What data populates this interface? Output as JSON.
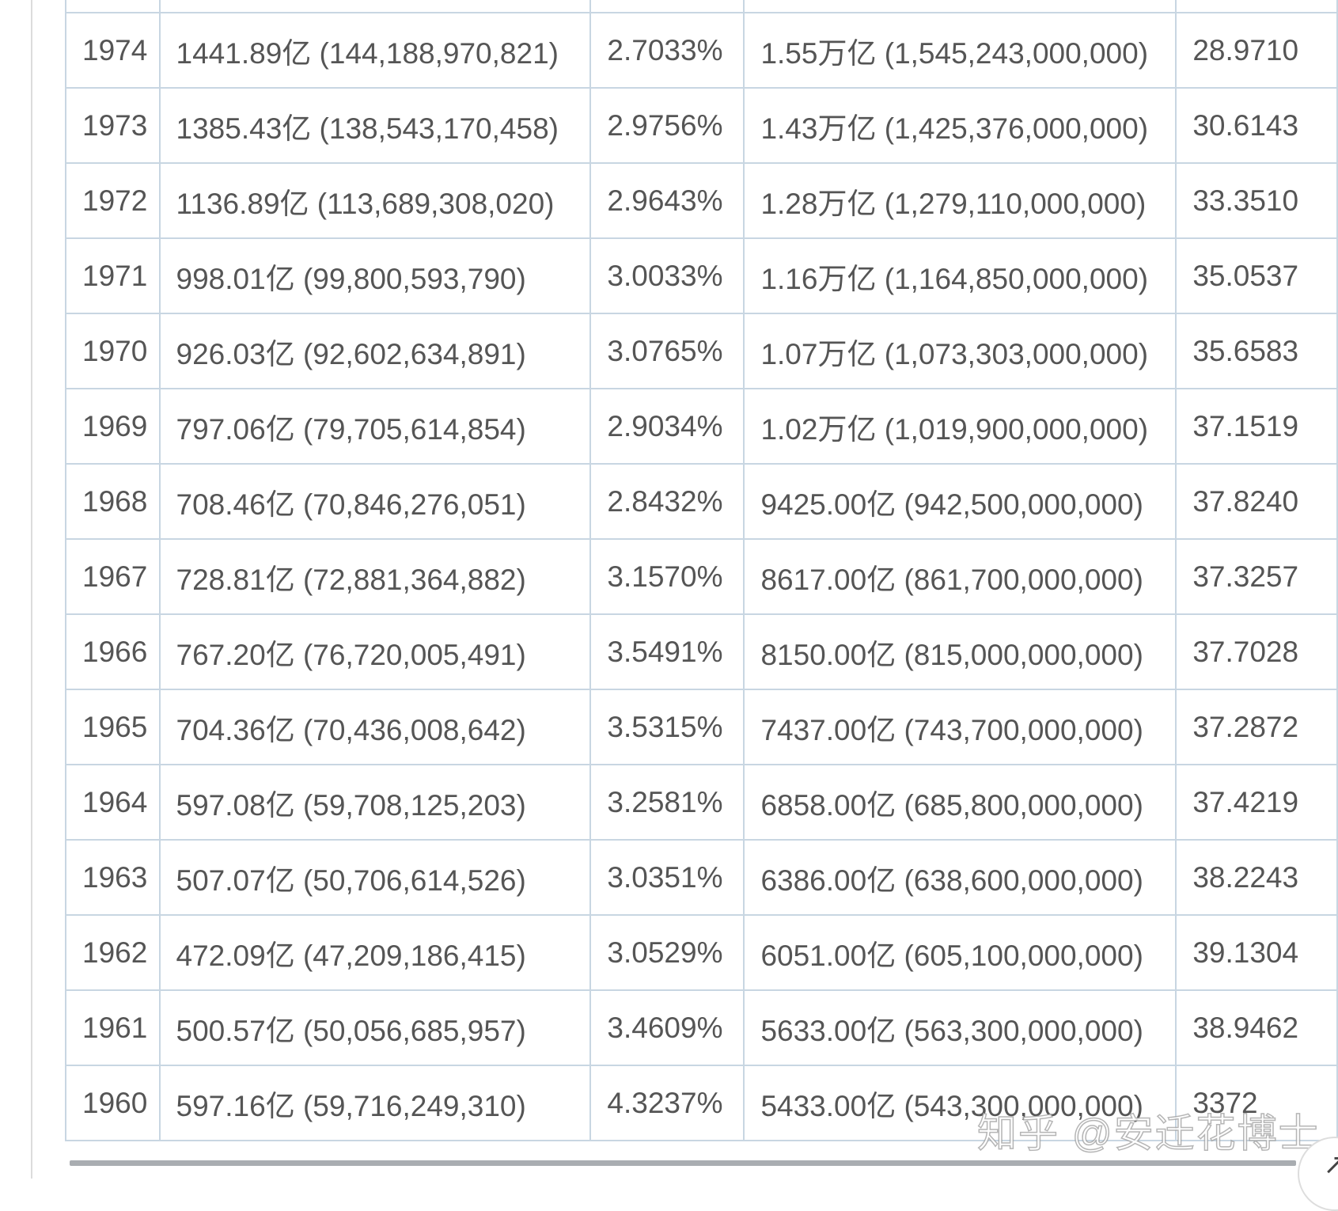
{
  "table": {
    "rows": [
      {
        "year": "",
        "gdp": "",
        "growth": "",
        "world_gdp": "",
        "ratio": ""
      },
      {
        "year": "1974",
        "gdp": "1441.89亿 (144,188,970,821)",
        "growth": "2.7033%",
        "world_gdp": "1.55万亿 (1,545,243,000,000)",
        "ratio": "28.9710"
      },
      {
        "year": "1973",
        "gdp": "1385.43亿 (138,543,170,458)",
        "growth": "2.9756%",
        "world_gdp": "1.43万亿 (1,425,376,000,000)",
        "ratio": "30.6143"
      },
      {
        "year": "1972",
        "gdp": "1136.89亿 (113,689,308,020)",
        "growth": "2.9643%",
        "world_gdp": "1.28万亿 (1,279,110,000,000)",
        "ratio": "33.3510"
      },
      {
        "year": "1971",
        "gdp": "998.01亿 (99,800,593,790)",
        "growth": "3.0033%",
        "world_gdp": "1.16万亿 (1,164,850,000,000)",
        "ratio": "35.0537"
      },
      {
        "year": "1970",
        "gdp": "926.03亿 (92,602,634,891)",
        "growth": "3.0765%",
        "world_gdp": "1.07万亿 (1,073,303,000,000)",
        "ratio": "35.6583"
      },
      {
        "year": "1969",
        "gdp": "797.06亿 (79,705,614,854)",
        "growth": "2.9034%",
        "world_gdp": "1.02万亿 (1,019,900,000,000)",
        "ratio": "37.1519"
      },
      {
        "year": "1968",
        "gdp": "708.46亿 (70,846,276,051)",
        "growth": "2.8432%",
        "world_gdp": "9425.00亿 (942,500,000,000)",
        "ratio": "37.8240"
      },
      {
        "year": "1967",
        "gdp": "728.81亿 (72,881,364,882)",
        "growth": "3.1570%",
        "world_gdp": "8617.00亿 (861,700,000,000)",
        "ratio": "37.3257"
      },
      {
        "year": "1966",
        "gdp": "767.20亿 (76,720,005,491)",
        "growth": "3.5491%",
        "world_gdp": "8150.00亿 (815,000,000,000)",
        "ratio": "37.7028"
      },
      {
        "year": "1965",
        "gdp": "704.36亿 (70,436,008,642)",
        "growth": "3.5315%",
        "world_gdp": "7437.00亿 (743,700,000,000)",
        "ratio": "37.2872"
      },
      {
        "year": "1964",
        "gdp": "597.08亿 (59,708,125,203)",
        "growth": "3.2581%",
        "world_gdp": "6858.00亿 (685,800,000,000)",
        "ratio": "37.4219"
      },
      {
        "year": "1963",
        "gdp": "507.07亿 (50,706,614,526)",
        "growth": "3.0351%",
        "world_gdp": "6386.00亿 (638,600,000,000)",
        "ratio": "38.2243"
      },
      {
        "year": "1962",
        "gdp": "472.09亿 (47,209,186,415)",
        "growth": "3.0529%",
        "world_gdp": "6051.00亿 (605,100,000,000)",
        "ratio": "39.1304"
      },
      {
        "year": "1961",
        "gdp": "500.57亿 (50,056,685,957)",
        "growth": "3.4609%",
        "world_gdp": "5633.00亿 (563,300,000,000)",
        "ratio": "38.9462"
      },
      {
        "year": "1960",
        "gdp": "597.16亿 (59,716,249,310)",
        "growth": "4.3237%",
        "world_gdp": "5433.00亿 (543,300,000,000)",
        "ratio": "3372"
      }
    ]
  },
  "watermark": "知乎 @安迁花博士",
  "corner_button_icon": "arrow-up-left-icon",
  "corner_button_glyph": "↗"
}
